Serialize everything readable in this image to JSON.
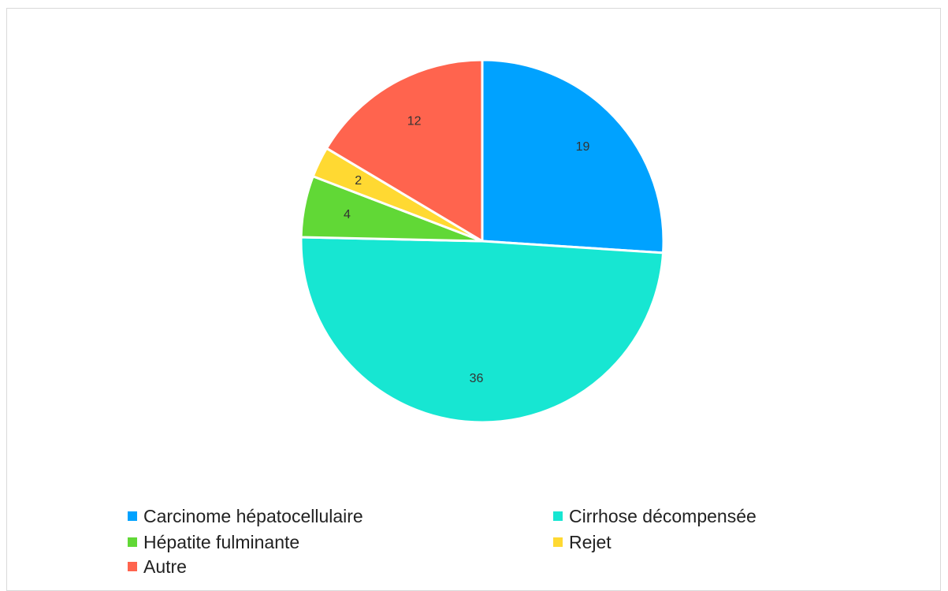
{
  "chart_data": {
    "type": "pie",
    "categories": [
      "Carcinome hépatocellulaire",
      "Cirrhose décompensée",
      "Hépatite fulminante",
      "Rejet",
      "Autre"
    ],
    "values": [
      19,
      36,
      4,
      2,
      12
    ],
    "data_labels": [
      "19",
      "36",
      "4",
      "2",
      "12"
    ],
    "colors": [
      "#00A2FF",
      "#17E6D2",
      "#61D836",
      "#FFD932",
      "#FF644E"
    ],
    "start_angle_deg": 0,
    "direction": "clockwise",
    "legend_position": "bottom"
  }
}
